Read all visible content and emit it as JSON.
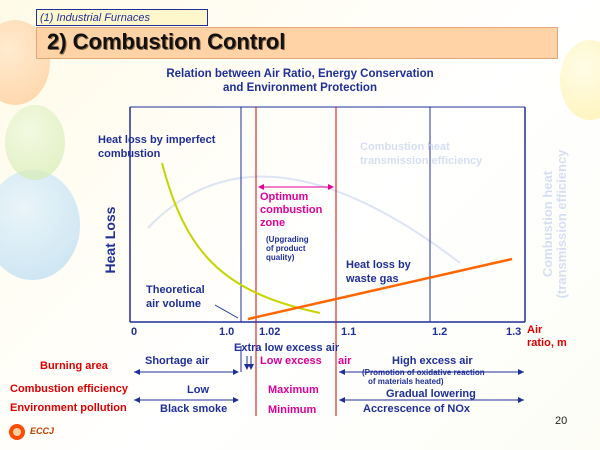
{
  "header": {
    "section": "(1) Industrial Furnaces",
    "title": "2) Combustion Control"
  },
  "subtitle": {
    "line1": "Relation between Air Ratio, Energy Conservation",
    "line2": "and Environment Protection"
  },
  "chart": {
    "ylabel": "Heat Loss",
    "right_axis_label_1": "Combustion heat",
    "right_axis_label_2": "(transmission efficiency",
    "xlabel_1": "Air",
    "xlabel_2": "ratio, m",
    "ticks": [
      "0",
      "1.0",
      "1.02",
      "1.1",
      "1.2",
      "1.3"
    ],
    "labels": {
      "imperfect_1": "Heat loss by imperfect",
      "imperfect_2": "combustion",
      "transmission_1": "Combustion heat",
      "transmission_2": "transmission efficiency",
      "optimum_1": "Optimum",
      "optimum_2": "combustion",
      "optimum_3": "zone",
      "upgrading_1": "(Upgrading",
      "upgrading_2": "of product",
      "upgrading_3": "quality)",
      "waste_1": "Heat loss by",
      "waste_2": "waste gas",
      "theoretical_1": "Theoretical",
      "theoretical_2": "air volume"
    }
  },
  "table": {
    "row_labels": {
      "burning": "Burning area",
      "efficiency": "Combustion efficiency",
      "pollution": "Environment pollution"
    },
    "extra_low": "Extra low excess air",
    "shortage": "Shortage air",
    "low_excess": "Low excess",
    "air_word": "air",
    "high_excess": "High excess  air",
    "promotion_1": "(Promotion of oxidative reaction",
    "promotion_2": "of materials heated)",
    "eff_low": "Low",
    "eff_max": "Maximum",
    "eff_gradual": "Gradual lowering",
    "pol_black": "Black smoke",
    "pol_min": "Minimum",
    "pol_nox": "Accrescence  of NOx"
  },
  "footer": {
    "logo_text": "ECCJ",
    "page": "20"
  },
  "colors": {
    "navy": "#1f2f9a",
    "magenta": "#e0009a",
    "red": "#e00000",
    "orange": "#ff6600",
    "yellow_curve": "#c8d400",
    "header_bg": "#ffd3a6"
  }
}
